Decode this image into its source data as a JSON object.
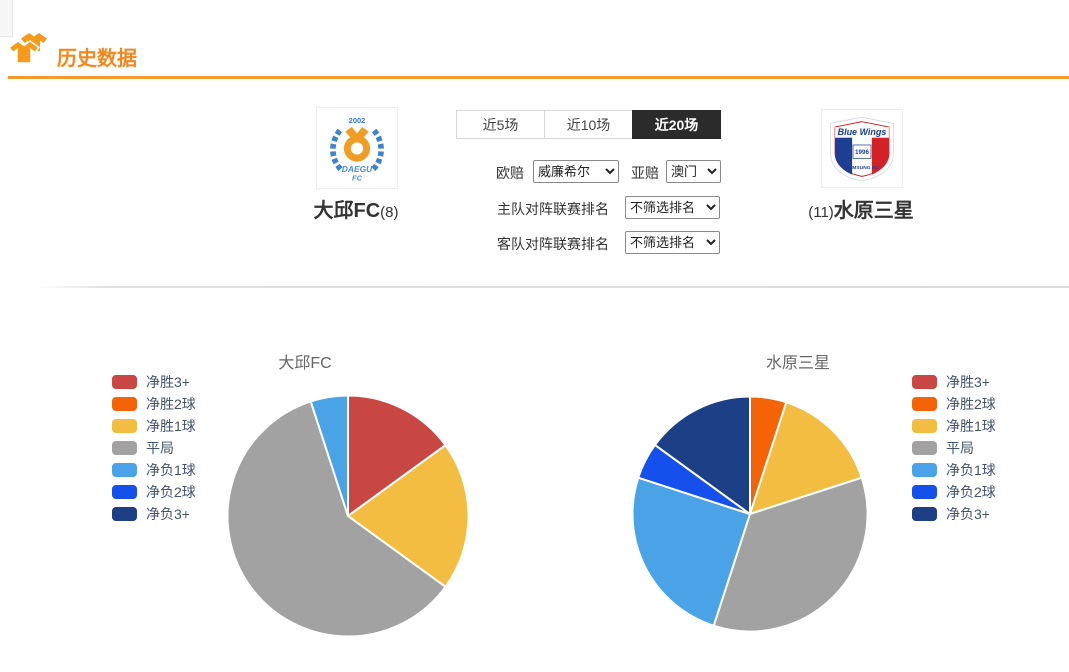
{
  "page": {
    "title": "历史数据"
  },
  "teams": {
    "home": {
      "name": "大邱FC",
      "rank": "(8)",
      "logo_year": "2002",
      "logo_text": "DAEGU",
      "logo_text2": "FC"
    },
    "away": {
      "name": "水原三星",
      "rank": "(11)",
      "logo_script": "Blue Wings",
      "logo_year": "1996",
      "logo_bottom": "SAMSUNG FC"
    }
  },
  "tabs": [
    {
      "label": "近5场",
      "active": false
    },
    {
      "label": "近10场",
      "active": false
    },
    {
      "label": "近20场",
      "active": true
    }
  ],
  "filters": {
    "europe_odds": {
      "label": "欧赔",
      "value": "威廉希尔"
    },
    "asia_odds": {
      "label": "亚赔",
      "value": "澳门"
    },
    "home_rank": {
      "label": "主队对阵联赛排名",
      "value": "不筛选排名"
    },
    "away_rank": {
      "label": "客队对阵联赛排名",
      "value": "不筛选排名"
    }
  },
  "colors": {
    "accent_orange": "#f2951d",
    "active_tab_bg": "#2b2b2b",
    "legend_text": "#43536b",
    "chart_title": "#666666"
  },
  "chart_data": [
    {
      "type": "pie",
      "title": "大邱FC",
      "categories": [
        "净胜3+",
        "净胜2球",
        "净胜1球",
        "平局",
        "净负1球",
        "净负2球",
        "净负3+"
      ],
      "values": [
        3,
        0,
        4,
        12,
        1,
        0,
        0
      ],
      "colors": [
        "#c94742",
        "#f56307",
        "#f3bd42",
        "#a2a2a2",
        "#49a3e6",
        "#1550ec",
        "#1c3f85"
      ],
      "legend_position": "left",
      "start_angle_deg": 90,
      "clockwise": true
    },
    {
      "type": "pie",
      "title": "水原三星",
      "categories": [
        "净胜3+",
        "净胜2球",
        "净胜1球",
        "平局",
        "净负1球",
        "净负2球",
        "净负3+"
      ],
      "values": [
        0,
        1,
        3,
        7,
        5,
        1,
        3
      ],
      "colors": [
        "#c94742",
        "#f56307",
        "#f3bd42",
        "#a2a2a2",
        "#49a3e6",
        "#1550ec",
        "#1c3f85"
      ],
      "legend_position": "right",
      "start_angle_deg": 90,
      "clockwise": true
    }
  ]
}
